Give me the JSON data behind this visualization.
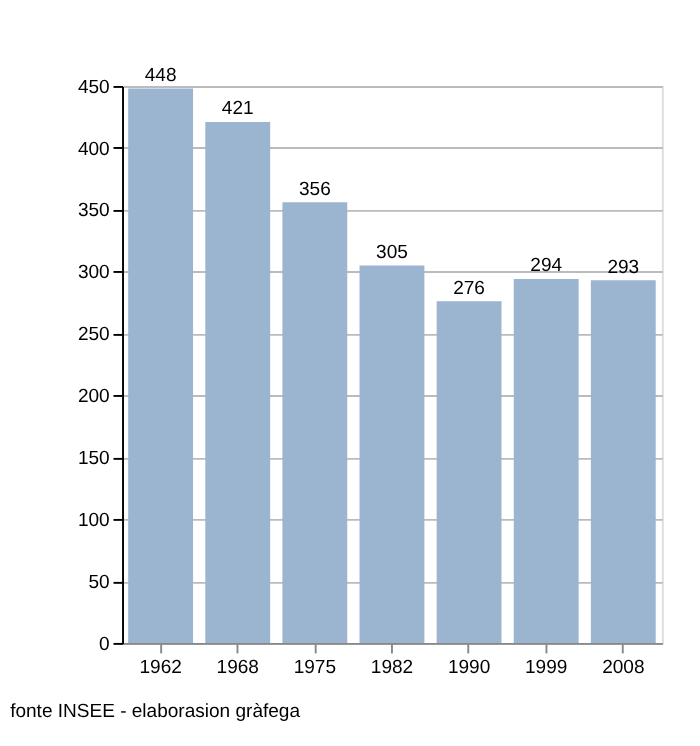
{
  "chart_data": {
    "type": "bar",
    "categories": [
      "1962",
      "1968",
      "1975",
      "1982",
      "1990",
      "1999",
      "2008"
    ],
    "values": [
      448,
      421,
      356,
      305,
      276,
      294,
      293
    ],
    "color": "#9bb4cf",
    "ylim": [
      0,
      450
    ],
    "yticks": [
      0,
      50,
      100,
      150,
      200,
      250,
      300,
      350,
      400,
      450
    ],
    "grid": "y",
    "data_labels": true,
    "annotations": [
      "fonte INSEE - elaborasion gràfega"
    ]
  }
}
